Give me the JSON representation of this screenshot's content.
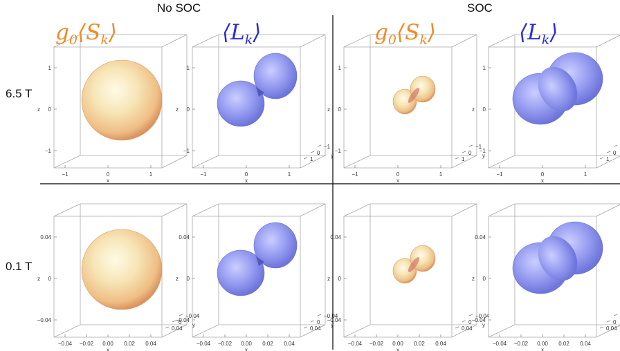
{
  "headers": {
    "left": "No SOC",
    "right": "SOC"
  },
  "rows": [
    "6.5 T",
    "0.1 T"
  ],
  "titles": {
    "spin": {
      "g": "g",
      "g_sub": "0",
      "S": "S",
      "S_sub": "k",
      "open": "⟨",
      "close": "⟩"
    },
    "orbital": {
      "L": "L",
      "L_sub": "k",
      "open": "⟨",
      "close": "⟩"
    }
  },
  "colors": {
    "spin_title": "#f08a24",
    "orbital_title": "#2b2bd8",
    "spin_surface": "#f2c27e",
    "orbital_surface": "#7f87ee"
  },
  "axis_letters": {
    "x": "x",
    "y": "y",
    "z": "z"
  },
  "ticks": {
    "big": {
      "z": [
        "1",
        "0",
        "−1"
      ],
      "x": [
        "−1",
        "0",
        "1"
      ],
      "y": [
        "1",
        "0",
        "−1"
      ]
    },
    "small": {
      "z": [
        "0.04",
        "0",
        "−0.04"
      ],
      "x": [
        "−0.04",
        "−0.02",
        "0.00",
        "0.02",
        "0.04"
      ],
      "y": [
        "0.04",
        "0",
        "−0.04"
      ]
    }
  },
  "panels": [
    {
      "id": "r1c1",
      "row": "6.5 T",
      "soc": "No SOC",
      "quantity": "spin",
      "shape": "sphere",
      "ticks": "big",
      "show_y": false
    },
    {
      "id": "r1c2",
      "row": "6.5 T",
      "soc": "No SOC",
      "quantity": "orbital",
      "shape": "dumbbell-pinched",
      "ticks": "big",
      "show_y": true
    },
    {
      "id": "r1c3",
      "row": "6.5 T",
      "soc": "SOC",
      "quantity": "spin",
      "shape": "small-dumbbell",
      "ticks": "big",
      "show_y": true
    },
    {
      "id": "r1c4",
      "row": "6.5 T",
      "soc": "SOC",
      "quantity": "orbital",
      "shape": "peanut",
      "ticks": "big",
      "show_y": true
    },
    {
      "id": "r2c1",
      "row": "0.1 T",
      "soc": "No SOC",
      "quantity": "spin",
      "shape": "sphere",
      "ticks": "small",
      "show_y": true
    },
    {
      "id": "r2c2",
      "row": "0.1 T",
      "soc": "No SOC",
      "quantity": "orbital",
      "shape": "dumbbell-pinched",
      "ticks": "small",
      "show_y": true
    },
    {
      "id": "r2c3",
      "row": "0.1 T",
      "soc": "SOC",
      "quantity": "spin",
      "shape": "small-dumbbell",
      "ticks": "small",
      "show_y": true
    },
    {
      "id": "r2c4",
      "row": "0.1 T",
      "soc": "SOC",
      "quantity": "orbital",
      "shape": "peanut",
      "ticks": "small",
      "show_y": true
    }
  ]
}
